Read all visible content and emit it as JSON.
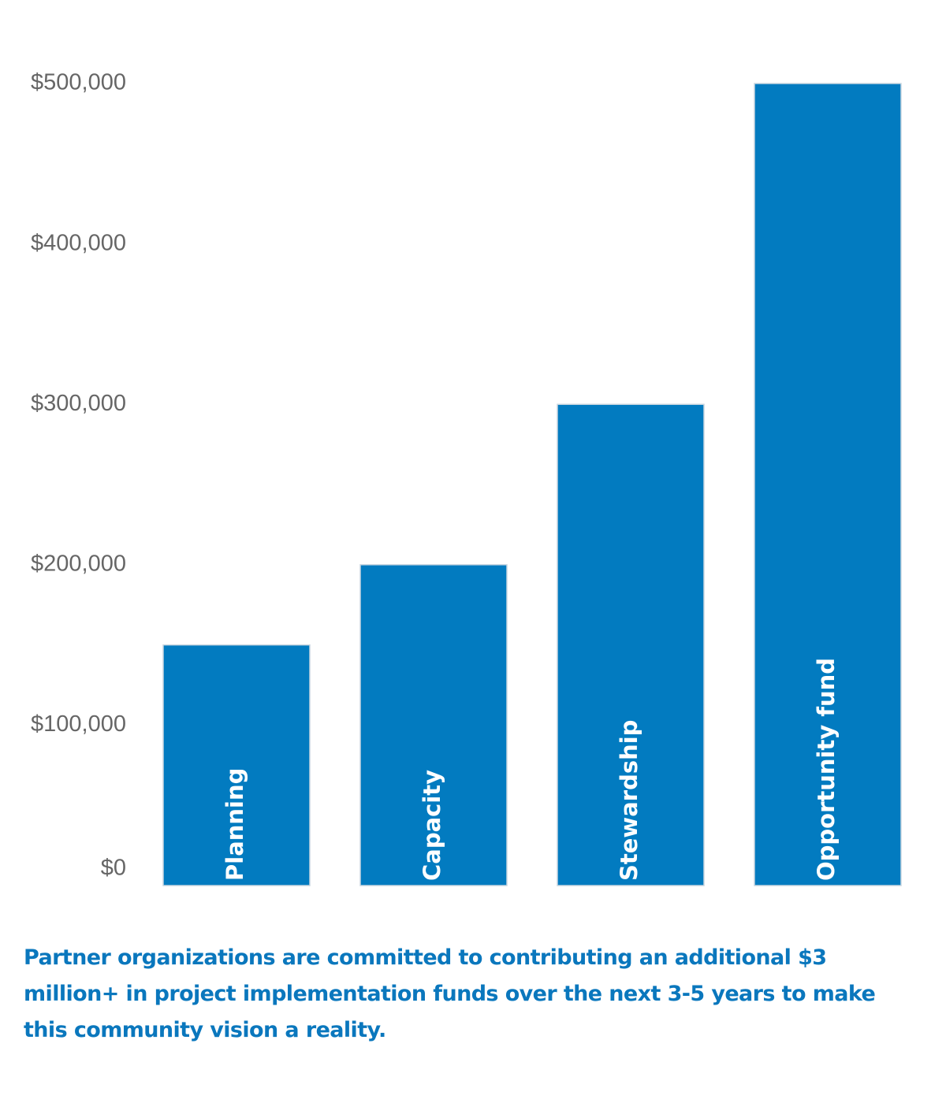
{
  "chart_data": {
    "type": "bar",
    "orientation": "vertical",
    "categories": [
      "Planning",
      "Capacity",
      "Stewardship",
      "Opportunity fund"
    ],
    "values": [
      150000,
      200000,
      300000,
      500000
    ],
    "ylim": [
      0,
      500000
    ],
    "yticks": [
      0,
      100000,
      200000,
      300000,
      400000,
      500000
    ],
    "ytick_labels": [
      "$0",
      "$100,000",
      "$200,000",
      "$300,000",
      "$400,000",
      "$500,000"
    ],
    "category_labels_inside_bars": true,
    "grid": false,
    "legend": "none",
    "bar_color": "#027bc0",
    "label_color": "#ffffff",
    "tick_color": "#666666"
  },
  "caption": {
    "line1": "Partner organizations are committed to contributing an additional $3",
    "line2": "million+ in project implementation funds over the next 3-5 years to make",
    "line3": "this community vision a reality.",
    "color": "#0a77bd"
  }
}
